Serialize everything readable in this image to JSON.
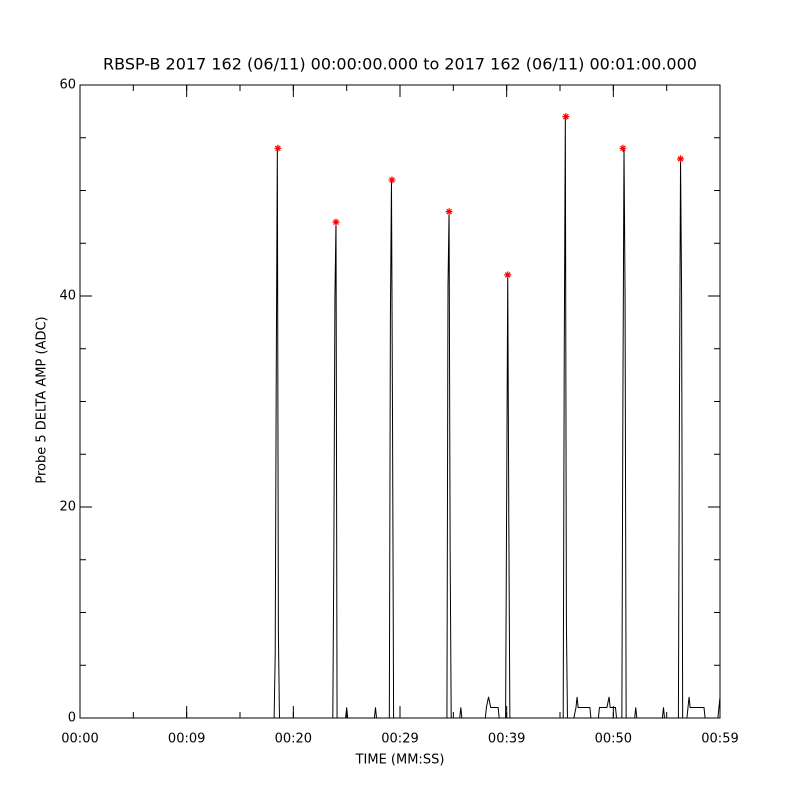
{
  "chart_data": {
    "type": "line",
    "title": "RBSP-B 2017 162 (06/11) 00:00:00.000 to 2017 162 (06/11) 00:01:00.000",
    "x_label": "TIME (MM:SS)",
    "y_label": "Probe 5 DELTA AMP (ADC)",
    "xlim": [
      0,
      60
    ],
    "xticks": [
      {
        "value": 0,
        "label": "00:00"
      },
      {
        "value": 10,
        "label": "00:09"
      },
      {
        "value": 20,
        "label": "00:20"
      },
      {
        "value": 30,
        "label": "00:29"
      },
      {
        "value": 40,
        "label": "00:39"
      },
      {
        "value": 50,
        "label": "00:50"
      },
      {
        "value": 60,
        "label": "00:59"
      }
    ],
    "xminor": 5,
    "ylim": [
      0,
      60
    ],
    "yticks": [
      0,
      20,
      40,
      60
    ],
    "yminor": 5,
    "series": [
      {
        "color": "#000000",
        "x": [
          0,
          18.2,
          18.3,
          18.4,
          18.5,
          18.6,
          18.7,
          23.7,
          23.8,
          23.9,
          24.0,
          24.1,
          24.9,
          25.0,
          25.1,
          27.6,
          27.7,
          27.8,
          29.0,
          29.1,
          29.2,
          29.3,
          29.4,
          34.4,
          34.5,
          34.6,
          34.7,
          34.8,
          35.6,
          35.7,
          35.8,
          38.0,
          38.1,
          38.3,
          38.5,
          39.2,
          39.3,
          39.9,
          40.0,
          40.1,
          40.2,
          40.3,
          45.3,
          45.4,
          45.5,
          45.6,
          45.7,
          46.3,
          46.5,
          46.6,
          46.7,
          47.8,
          47.9,
          48.6,
          48.7,
          49.4,
          49.6,
          49.7,
          50.2,
          50.3,
          50.8,
          50.9,
          51.0,
          51.1,
          51.2,
          52.0,
          52.1,
          52.2,
          54.6,
          54.7,
          54.8,
          56.1,
          56.2,
          56.3,
          56.4,
          56.5,
          56.9,
          57.0,
          57.1,
          57.2,
          58.5,
          58.6,
          59.8,
          59.9,
          60
        ],
        "values": [
          0,
          0,
          6,
          33,
          54,
          8,
          0,
          0,
          16,
          40,
          47,
          0,
          0,
          1,
          0,
          0,
          1,
          0,
          0,
          38,
          51,
          28,
          0,
          0,
          41,
          48,
          16,
          0,
          0,
          1,
          0,
          0,
          1,
          2,
          1,
          1,
          0,
          0,
          21,
          42,
          19,
          0,
          0,
          35,
          57,
          9,
          0,
          0,
          1,
          2,
          1,
          1,
          0,
          0,
          1,
          1,
          2,
          1,
          1,
          0,
          0,
          31,
          54,
          40,
          0,
          0,
          1,
          0,
          0,
          1,
          0,
          0,
          30,
          53,
          40,
          0,
          0,
          1,
          2,
          1,
          1,
          0,
          0,
          1,
          2
        ]
      },
      {
        "color": "#ff0000",
        "marker": "asterisk",
        "x": [
          18.55,
          24.0,
          29.25,
          34.6,
          40.1,
          45.55,
          50.9,
          56.3
        ],
        "values": [
          54,
          47,
          51,
          48,
          42,
          57,
          54,
          53
        ]
      }
    ]
  }
}
